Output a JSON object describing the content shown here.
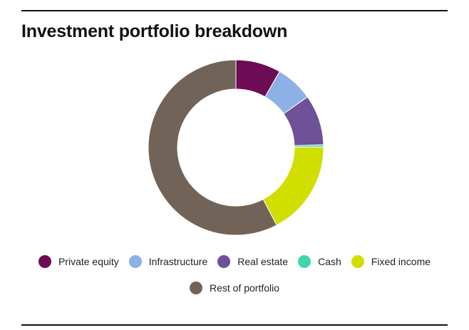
{
  "chart_data": {
    "type": "pie",
    "title": "Investment portfolio breakdown",
    "donut": true,
    "categories": [
      "Private equity",
      "Infrastructure",
      "Real estate",
      "Cash",
      "Fixed income",
      "Rest of portfolio"
    ],
    "values": [
      8.3,
      6.9,
      9.3,
      0.4,
      17.4,
      57.7
    ],
    "unit": "%",
    "colors": [
      "#6e0b55",
      "#8db1e6",
      "#6e5196",
      "#3fd6ab",
      "#d0de00",
      "#716357"
    ],
    "legend": "bottom"
  }
}
